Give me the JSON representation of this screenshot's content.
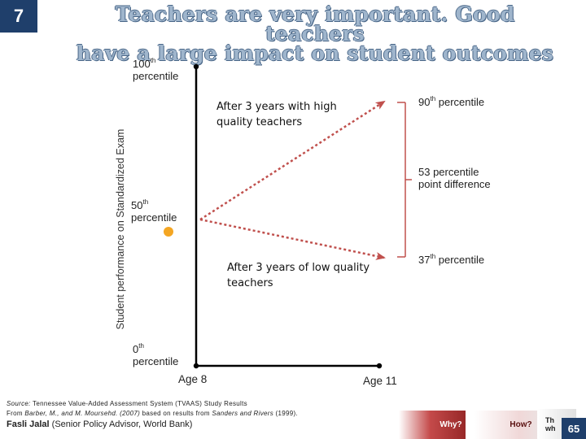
{
  "slide": {
    "number": "7",
    "page": "65"
  },
  "title": {
    "line1": "Teachers are very important. Good teachers",
    "line2": "have a large impact on student outcomes"
  },
  "axis": {
    "y_label": "Student performance on Standardized Exam",
    "top": {
      "value": "100",
      "sup": "th",
      "word": "percentile"
    },
    "mid": {
      "value": "50",
      "sup": "th",
      "word": "percentile"
    },
    "bottom": {
      "value": "0",
      "sup": "th",
      "word": "percentile"
    },
    "x_start": "Age 8",
    "x_end": "Age 11"
  },
  "annotations": {
    "high_quality": [
      "After 3 years with high",
      "quality teachers"
    ],
    "low_quality": [
      "After 3 years of low quality",
      "teachers"
    ],
    "p90": {
      "value": "90",
      "sup": "th",
      "word": "percentile"
    },
    "p37": {
      "value": "37",
      "sup": "th",
      "word": "percentile"
    },
    "difference": [
      "53 percentile",
      "point difference"
    ]
  },
  "source": {
    "prefix": "Source:",
    "line1_rest": " Tennessee Value-Added Assessment System (TVAAS) Study Results",
    "line2_a": "From ",
    "line2_b": "Barber, M., and M. Moursehd. (2007)",
    "line2_c": " based on results from ",
    "line2_d": "Sanders and Rivers",
    "line2_e": " (1999)."
  },
  "credit": {
    "name": "Fasli Jalal",
    "role": " (Senior Policy Advisor, World Bank)"
  },
  "nav": {
    "why": "Why?",
    "how": "How?",
    "then_1": "Th",
    "then_2": "wh"
  },
  "colors": {
    "arrow": "#c0504d",
    "dot": "#f4a623",
    "brace": "#c0504d",
    "title_fill": "#9fb5cc",
    "badge": "#1f3f6b"
  }
}
